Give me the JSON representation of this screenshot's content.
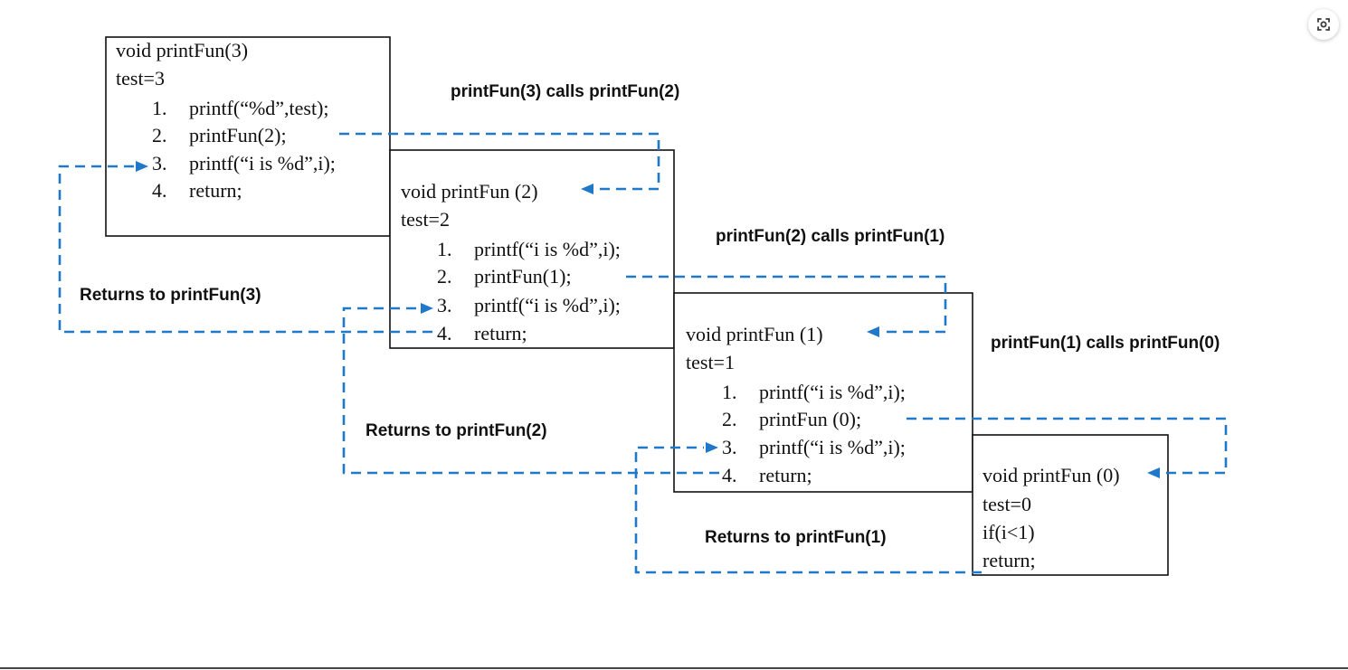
{
  "frames": [
    {
      "header": "void printFun(3)",
      "test": "test=3",
      "lines": [
        {
          "num": "1.",
          "code": "printf(“%d”,test);"
        },
        {
          "num": "2.",
          "code": "printFun(2);"
        },
        {
          "num": "3.",
          "code": "printf(“i is %d”,i);"
        },
        {
          "num": "4.",
          "code": "return;"
        }
      ]
    },
    {
      "header": "void printFun (2)",
      "test": "test=2",
      "lines": [
        {
          "num": "1.",
          "code": "printf(“i is %d”,i);"
        },
        {
          "num": "2.",
          "code": "printFun(1);"
        },
        {
          "num": "3.",
          "code": "printf(“i is %d”,i);"
        },
        {
          "num": "4.",
          "code": "return;"
        }
      ]
    },
    {
      "header": "void printFun (1)",
      "test": "test=1",
      "lines": [
        {
          "num": "1.",
          "code": "printf(“i is %d”,i);"
        },
        {
          "num": "2.",
          "code": "printFun (0);"
        },
        {
          "num": "3.",
          "code": "printf(“i is %d”,i);"
        },
        {
          "num": "4.",
          "code": "return;"
        }
      ]
    },
    {
      "header": "void printFun (0)",
      "test": "test=0",
      "body": [
        "if(i<1)",
        "return;"
      ]
    }
  ],
  "labels": {
    "call_3_2": "printFun(3) calls printFun(2)",
    "call_2_1": "printFun(2) calls printFun(1)",
    "call_1_0": "printFun(1) calls printFun(0)",
    "ret_3": "Returns to printFun(3)",
    "ret_2": "Returns to printFun(2)",
    "ret_1": "Returns to printFun(1)"
  },
  "colors": {
    "arrow": "#1f78c8",
    "box_border": "#111111"
  },
  "toolbar": {
    "lens_icon": "lens-icon"
  }
}
